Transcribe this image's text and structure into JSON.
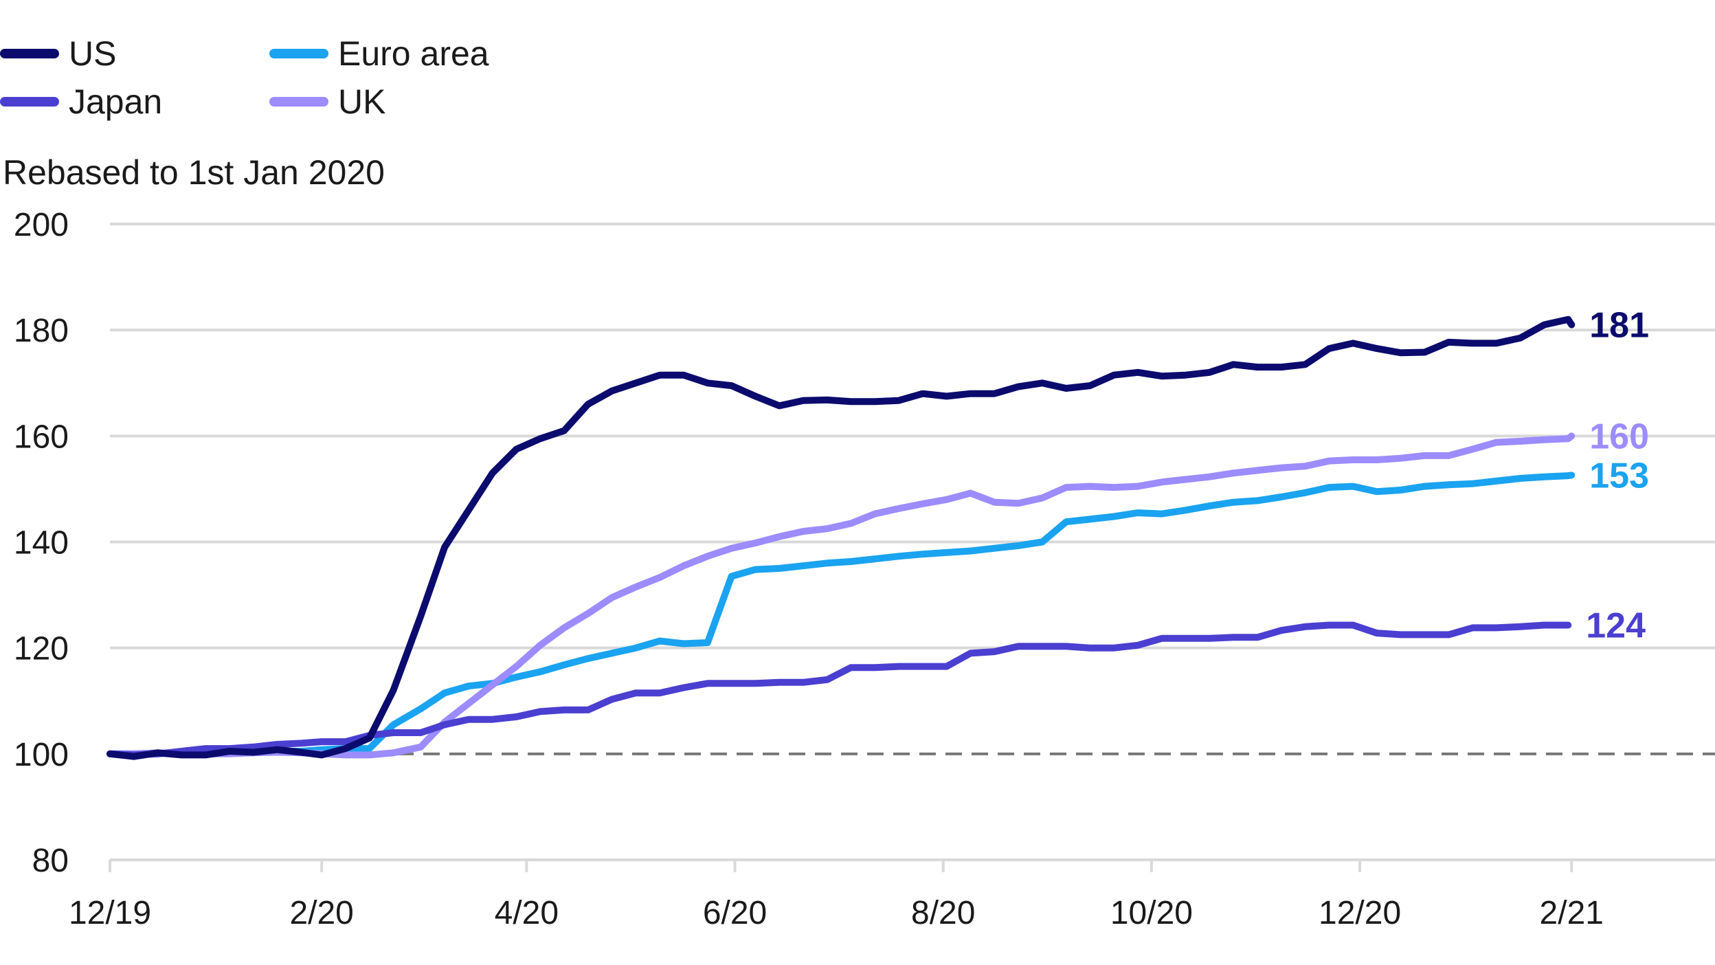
{
  "legend": {
    "items": [
      {
        "name": "US",
        "color": "#0b0b6e"
      },
      {
        "name": "Euro area",
        "color": "#1aa3f0"
      },
      {
        "name": "Japan",
        "color": "#4b3fd1"
      },
      {
        "name": "UK",
        "color": "#9c8cff"
      }
    ]
  },
  "chart_data": {
    "type": "line",
    "title": "",
    "ylabel": "Rebased to 1st Jan 2020",
    "xlabel": "",
    "ylim": [
      80,
      200
    ],
    "xlim": [
      "2019-12-01",
      "2021-03-15"
    ],
    "y_ticks": [
      80,
      100,
      120,
      140,
      160,
      180,
      200
    ],
    "x_ticks": [
      {
        "label": "12/19",
        "date": "2019-12-01"
      },
      {
        "label": "2/20",
        "date": "2020-02-01"
      },
      {
        "label": "4/20",
        "date": "2020-04-01"
      },
      {
        "label": "6/20",
        "date": "2020-06-01"
      },
      {
        "label": "8/20",
        "date": "2020-08-01"
      },
      {
        "label": "10/20",
        "date": "2020-10-01"
      },
      {
        "label": "12/20",
        "date": "2020-12-01"
      },
      {
        "label": "2/21",
        "date": "2021-02-01"
      }
    ],
    "reference_line": {
      "y": 100,
      "style": "dashed",
      "color": "#777777"
    },
    "grid": true,
    "legend_position": "top-left",
    "series": [
      {
        "name": "US",
        "color": "#0b0b6e",
        "end_label": "181",
        "points": [
          [
            "2019-12-01",
            100
          ],
          [
            "2019-12-08",
            99.5
          ],
          [
            "2019-12-15",
            100.2
          ],
          [
            "2019-12-22",
            99.8
          ],
          [
            "2019-12-29",
            99.8
          ],
          [
            "2020-01-05",
            100.5
          ],
          [
            "2020-01-12",
            100.3
          ],
          [
            "2020-01-19",
            100.8
          ],
          [
            "2020-01-26",
            100.3
          ],
          [
            "2020-02-01",
            99.8
          ],
          [
            "2020-02-08",
            101
          ],
          [
            "2020-02-15",
            103
          ],
          [
            "2020-02-22",
            112
          ],
          [
            "2020-03-01",
            126
          ],
          [
            "2020-03-08",
            139
          ],
          [
            "2020-03-15",
            146
          ],
          [
            "2020-03-22",
            153
          ],
          [
            "2020-03-29",
            157.5
          ],
          [
            "2020-04-05",
            159.5
          ],
          [
            "2020-04-12",
            161
          ],
          [
            "2020-04-19",
            166
          ],
          [
            "2020-04-26",
            168.5
          ],
          [
            "2020-05-03",
            170
          ],
          [
            "2020-05-10",
            171.5
          ],
          [
            "2020-05-17",
            171.5
          ],
          [
            "2020-05-24",
            170
          ],
          [
            "2020-05-31",
            169.5
          ],
          [
            "2020-06-07",
            167.5
          ],
          [
            "2020-06-14",
            165.7
          ],
          [
            "2020-06-21",
            166.7
          ],
          [
            "2020-06-28",
            166.8
          ],
          [
            "2020-07-05",
            166.5
          ],
          [
            "2020-07-12",
            166.5
          ],
          [
            "2020-07-19",
            166.7
          ],
          [
            "2020-07-26",
            168
          ],
          [
            "2020-08-02",
            167.5
          ],
          [
            "2020-08-09",
            168
          ],
          [
            "2020-08-16",
            168
          ],
          [
            "2020-08-23",
            169.3
          ],
          [
            "2020-08-30",
            170
          ],
          [
            "2020-09-06",
            169
          ],
          [
            "2020-09-13",
            169.5
          ],
          [
            "2020-09-20",
            171.5
          ],
          [
            "2020-09-27",
            172
          ],
          [
            "2020-10-04",
            171.3
          ],
          [
            "2020-10-11",
            171.5
          ],
          [
            "2020-10-18",
            172
          ],
          [
            "2020-10-25",
            173.5
          ],
          [
            "2020-11-01",
            173
          ],
          [
            "2020-11-08",
            173
          ],
          [
            "2020-11-15",
            173.5
          ],
          [
            "2020-11-22",
            176.5
          ],
          [
            "2020-11-29",
            177.5
          ],
          [
            "2020-12-06",
            176.5
          ],
          [
            "2020-12-13",
            175.7
          ],
          [
            "2020-12-20",
            175.8
          ],
          [
            "2020-12-27",
            177.7
          ],
          [
            "2021-01-03",
            177.5
          ],
          [
            "2021-01-10",
            177.5
          ],
          [
            "2021-01-17",
            178.5
          ],
          [
            "2021-01-24",
            181
          ],
          [
            "2021-01-31",
            182
          ],
          [
            "2021-02-01",
            181
          ]
        ]
      },
      {
        "name": "Euro area",
        "color": "#1aa3f0",
        "end_label": "153",
        "points": [
          [
            "2019-12-01",
            100
          ],
          [
            "2019-12-08",
            100
          ],
          [
            "2019-12-15",
            100
          ],
          [
            "2019-12-22",
            100.3
          ],
          [
            "2019-12-29",
            100.3
          ],
          [
            "2020-01-05",
            100.3
          ],
          [
            "2020-01-12",
            100.5
          ],
          [
            "2020-01-19",
            100.5
          ],
          [
            "2020-01-26",
            100.5
          ],
          [
            "2020-02-01",
            100.8
          ],
          [
            "2020-02-08",
            101
          ],
          [
            "2020-02-15",
            101
          ],
          [
            "2020-02-22",
            105.5
          ],
          [
            "2020-03-01",
            108.5
          ],
          [
            "2020-03-08",
            111.5
          ],
          [
            "2020-03-15",
            112.8
          ],
          [
            "2020-03-22",
            113.3
          ],
          [
            "2020-03-29",
            114.5
          ],
          [
            "2020-04-05",
            115.5
          ],
          [
            "2020-04-12",
            116.8
          ],
          [
            "2020-04-19",
            118
          ],
          [
            "2020-04-26",
            119
          ],
          [
            "2020-05-03",
            120
          ],
          [
            "2020-05-10",
            121.3
          ],
          [
            "2020-05-17",
            120.8
          ],
          [
            "2020-05-24",
            121
          ],
          [
            "2020-05-31",
            133.5
          ],
          [
            "2020-06-07",
            134.8
          ],
          [
            "2020-06-14",
            135
          ],
          [
            "2020-06-21",
            135.5
          ],
          [
            "2020-06-28",
            136
          ],
          [
            "2020-07-05",
            136.3
          ],
          [
            "2020-07-12",
            136.8
          ],
          [
            "2020-07-19",
            137.3
          ],
          [
            "2020-07-26",
            137.7
          ],
          [
            "2020-08-02",
            138
          ],
          [
            "2020-08-09",
            138.3
          ],
          [
            "2020-08-16",
            138.8
          ],
          [
            "2020-08-23",
            139.3
          ],
          [
            "2020-08-30",
            140
          ],
          [
            "2020-09-06",
            143.8
          ],
          [
            "2020-09-13",
            144.3
          ],
          [
            "2020-09-20",
            144.8
          ],
          [
            "2020-09-27",
            145.5
          ],
          [
            "2020-10-04",
            145.3
          ],
          [
            "2020-10-11",
            146
          ],
          [
            "2020-10-18",
            146.8
          ],
          [
            "2020-10-25",
            147.5
          ],
          [
            "2020-11-01",
            147.8
          ],
          [
            "2020-11-08",
            148.5
          ],
          [
            "2020-11-15",
            149.3
          ],
          [
            "2020-11-22",
            150.3
          ],
          [
            "2020-11-29",
            150.5
          ],
          [
            "2020-12-06",
            149.5
          ],
          [
            "2020-12-13",
            149.8
          ],
          [
            "2020-12-20",
            150.5
          ],
          [
            "2020-12-27",
            150.8
          ],
          [
            "2021-01-03",
            151
          ],
          [
            "2021-01-10",
            151.5
          ],
          [
            "2021-01-17",
            152
          ],
          [
            "2021-01-24",
            152.3
          ],
          [
            "2021-01-31",
            152.5
          ],
          [
            "2021-02-01",
            152.6
          ]
        ]
      },
      {
        "name": "Japan",
        "color": "#4b3fd1",
        "end_label": "124",
        "points": [
          [
            "2019-12-01",
            100
          ],
          [
            "2019-12-08",
            99.8
          ],
          [
            "2019-12-15",
            100
          ],
          [
            "2019-12-22",
            100.5
          ],
          [
            "2019-12-29",
            101
          ],
          [
            "2020-01-05",
            101
          ],
          [
            "2020-01-12",
            101.3
          ],
          [
            "2020-01-19",
            101.8
          ],
          [
            "2020-01-26",
            102
          ],
          [
            "2020-02-01",
            102.3
          ],
          [
            "2020-02-08",
            102.3
          ],
          [
            "2020-02-15",
            103.5
          ],
          [
            "2020-02-22",
            104
          ],
          [
            "2020-03-01",
            104
          ],
          [
            "2020-03-08",
            105.5
          ],
          [
            "2020-03-15",
            106.5
          ],
          [
            "2020-03-22",
            106.5
          ],
          [
            "2020-03-29",
            107
          ],
          [
            "2020-04-05",
            108
          ],
          [
            "2020-04-12",
            108.3
          ],
          [
            "2020-04-19",
            108.3
          ],
          [
            "2020-04-26",
            110.3
          ],
          [
            "2020-05-03",
            111.5
          ],
          [
            "2020-05-10",
            111.5
          ],
          [
            "2020-05-17",
            112.5
          ],
          [
            "2020-05-24",
            113.3
          ],
          [
            "2020-05-31",
            113.3
          ],
          [
            "2020-06-07",
            113.3
          ],
          [
            "2020-06-14",
            113.5
          ],
          [
            "2020-06-21",
            113.5
          ],
          [
            "2020-06-28",
            114
          ],
          [
            "2020-07-05",
            116.3
          ],
          [
            "2020-07-12",
            116.3
          ],
          [
            "2020-07-19",
            116.5
          ],
          [
            "2020-07-26",
            116.5
          ],
          [
            "2020-08-02",
            116.5
          ],
          [
            "2020-08-09",
            119
          ],
          [
            "2020-08-16",
            119.3
          ],
          [
            "2020-08-23",
            120.3
          ],
          [
            "2020-08-30",
            120.3
          ],
          [
            "2020-09-06",
            120.3
          ],
          [
            "2020-09-13",
            120
          ],
          [
            "2020-09-20",
            120
          ],
          [
            "2020-09-27",
            120.5
          ],
          [
            "2020-10-04",
            121.8
          ],
          [
            "2020-10-11",
            121.8
          ],
          [
            "2020-10-18",
            121.8
          ],
          [
            "2020-10-25",
            122
          ],
          [
            "2020-11-01",
            122
          ],
          [
            "2020-11-08",
            123.3
          ],
          [
            "2020-11-15",
            124
          ],
          [
            "2020-11-22",
            124.3
          ],
          [
            "2020-11-29",
            124.3
          ],
          [
            "2020-12-06",
            122.8
          ],
          [
            "2020-12-13",
            122.5
          ],
          [
            "2020-12-20",
            122.5
          ],
          [
            "2020-12-27",
            122.5
          ],
          [
            "2021-01-03",
            123.8
          ],
          [
            "2021-01-10",
            123.8
          ],
          [
            "2021-01-17",
            124
          ],
          [
            "2021-01-24",
            124.3
          ],
          [
            "2021-01-31",
            124.3
          ]
        ]
      },
      {
        "name": "UK",
        "color": "#9c8cff",
        "end_label": "160",
        "points": [
          [
            "2019-12-01",
            100
          ],
          [
            "2019-12-08",
            100
          ],
          [
            "2019-12-15",
            100.2
          ],
          [
            "2019-12-22",
            100
          ],
          [
            "2019-12-29",
            100
          ],
          [
            "2020-01-05",
            100
          ],
          [
            "2020-01-12",
            100.2
          ],
          [
            "2020-01-19",
            100.3
          ],
          [
            "2020-01-26",
            100.2
          ],
          [
            "2020-02-01",
            100
          ],
          [
            "2020-02-08",
            99.8
          ],
          [
            "2020-02-15",
            99.8
          ],
          [
            "2020-02-22",
            100.2
          ],
          [
            "2020-03-01",
            101.3
          ],
          [
            "2020-03-08",
            106
          ],
          [
            "2020-03-15",
            109.5
          ],
          [
            "2020-03-22",
            113
          ],
          [
            "2020-03-29",
            116.5
          ],
          [
            "2020-04-05",
            120.5
          ],
          [
            "2020-04-12",
            123.8
          ],
          [
            "2020-04-19",
            126.5
          ],
          [
            "2020-04-26",
            129.5
          ],
          [
            "2020-05-03",
            131.5
          ],
          [
            "2020-05-10",
            133.3
          ],
          [
            "2020-05-17",
            135.5
          ],
          [
            "2020-05-24",
            137.3
          ],
          [
            "2020-05-31",
            138.8
          ],
          [
            "2020-06-07",
            139.8
          ],
          [
            "2020-06-14",
            141
          ],
          [
            "2020-06-21",
            142
          ],
          [
            "2020-06-28",
            142.5
          ],
          [
            "2020-07-05",
            143.5
          ],
          [
            "2020-07-12",
            145.3
          ],
          [
            "2020-07-19",
            146.3
          ],
          [
            "2020-07-26",
            147.2
          ],
          [
            "2020-08-02",
            148
          ],
          [
            "2020-08-09",
            149.2
          ],
          [
            "2020-08-16",
            147.5
          ],
          [
            "2020-08-23",
            147.3
          ],
          [
            "2020-08-30",
            148.3
          ],
          [
            "2020-09-06",
            150.3
          ],
          [
            "2020-09-13",
            150.5
          ],
          [
            "2020-09-20",
            150.3
          ],
          [
            "2020-09-27",
            150.5
          ],
          [
            "2020-10-04",
            151.3
          ],
          [
            "2020-10-11",
            151.8
          ],
          [
            "2020-10-18",
            152.3
          ],
          [
            "2020-10-25",
            153
          ],
          [
            "2020-11-01",
            153.5
          ],
          [
            "2020-11-08",
            154
          ],
          [
            "2020-11-15",
            154.3
          ],
          [
            "2020-11-22",
            155.3
          ],
          [
            "2020-11-29",
            155.5
          ],
          [
            "2020-12-06",
            155.5
          ],
          [
            "2020-12-13",
            155.8
          ],
          [
            "2020-12-20",
            156.3
          ],
          [
            "2020-12-27",
            156.3
          ],
          [
            "2021-01-03",
            157.5
          ],
          [
            "2021-01-10",
            158.8
          ],
          [
            "2021-01-17",
            159
          ],
          [
            "2021-01-24",
            159.3
          ],
          [
            "2021-01-31",
            159.5
          ],
          [
            "2021-02-01",
            160
          ]
        ]
      }
    ]
  }
}
